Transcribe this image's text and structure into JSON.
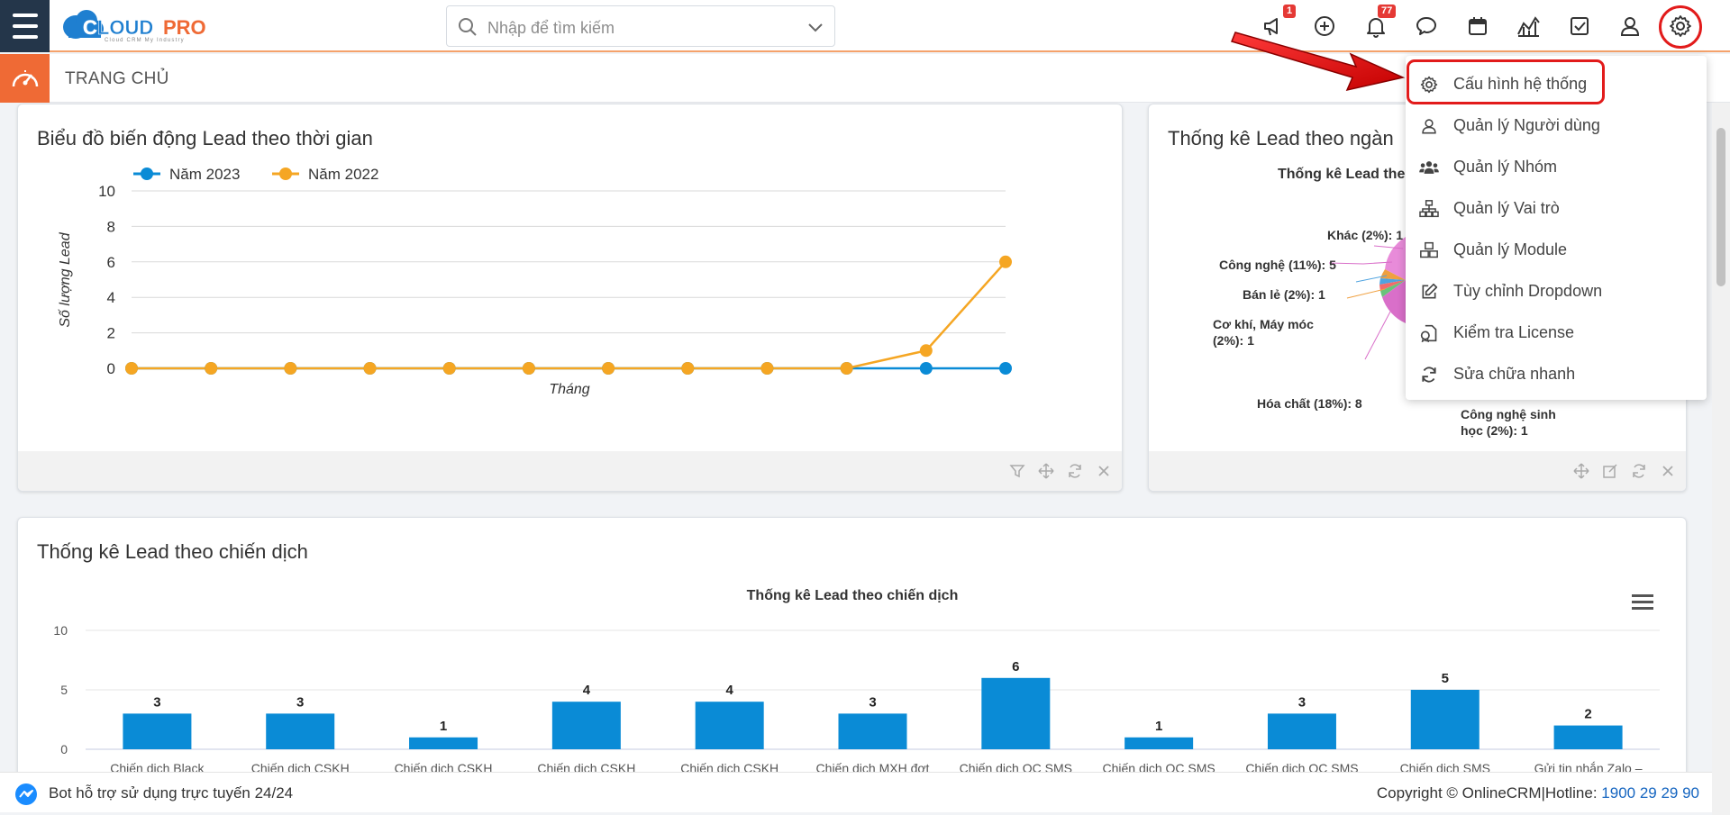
{
  "app": {
    "logo_text": "CLOUDPRO",
    "logo_tagline": "Cloud CRM My Industry"
  },
  "header": {
    "search_placeholder": "Nhập để tìm kiếm",
    "announce_badge": "1",
    "notif_badge": "77",
    "icons": [
      "megaphone-icon",
      "plus-circle-icon",
      "bell-icon",
      "chat-icon",
      "calendar-icon",
      "chart-icon",
      "checkbox-icon",
      "user-icon",
      "gear-icon"
    ]
  },
  "breadcrumb": {
    "title": "TRANG CHỦ"
  },
  "widgets": {
    "line": {
      "title": "Biểu đồ biến động Lead theo thời gian"
    },
    "industry": {
      "title": "Thống kê Lead theo ngàn",
      "chart_title": "Thống kê Lead the",
      "labels": [
        "Khác (2%): 1",
        "Công nghệ (11%): 5",
        "Bán lẻ (2%): 1",
        "Cơ khí, Máy móc",
        "(2%): 1",
        "Hóa chất (18%): 8",
        "Công nghệ sinh",
        "học (2%): 1"
      ]
    },
    "campaign": {
      "title": "Thống kê Lead theo chiến dịch",
      "chart_title": "Thống kê Lead theo chiến dịch"
    }
  },
  "chart_data": [
    {
      "type": "line",
      "title": "",
      "xlabel": "Tháng",
      "ylabel": "Số lượng Lead",
      "ylim": [
        0,
        10
      ],
      "yticks": [
        "10",
        "8",
        "6",
        "4",
        "2",
        "0"
      ],
      "legend": "top-left",
      "series": [
        {
          "name": "Năm 2023",
          "color": "#0a8bd6",
          "values": [
            0,
            0,
            0,
            0,
            0,
            0,
            0,
            0,
            0,
            0,
            0,
            0
          ]
        },
        {
          "name": "Năm 2022",
          "color": "#f5a623",
          "values": [
            0,
            0,
            0,
            0,
            0,
            0,
            0,
            0,
            0,
            0,
            1,
            6
          ]
        }
      ]
    },
    {
      "type": "bar",
      "title": "Thống kê Lead theo chiến dịch",
      "ylim": [
        0,
        10
      ],
      "yticks": [
        "10",
        "5",
        "0"
      ],
      "color": "#0a8bd6",
      "categories": [
        "Chiến dịch Black",
        "Chiến dịch CSKH",
        "Chiến dịch CSKH",
        "Chiến dịch CSKH",
        "Chiến dịch CSKH",
        "Chiến dịch MXH đợt",
        "Chiến dịch QC SMS",
        "Chiến dịch QC SMS",
        "Chiến dịch QC SMS",
        "Chiến dịch SMS",
        "Gửi tin nhắn Zalo –"
      ],
      "values": [
        3,
        3,
        1,
        4,
        4,
        3,
        6,
        1,
        3,
        5,
        2
      ]
    }
  ],
  "dropdown": {
    "items": [
      {
        "label": "Cấu hình hệ thống",
        "icon": "gear-icon"
      },
      {
        "label": "Quản lý Người dùng",
        "icon": "user-icon"
      },
      {
        "label": "Quản lý Nhóm",
        "icon": "group-icon"
      },
      {
        "label": "Quản lý Vai trò",
        "icon": "hierarchy-icon"
      },
      {
        "label": "Quản lý Module",
        "icon": "cubes-icon"
      },
      {
        "label": "Tùy chỉnh Dropdown",
        "icon": "edit-icon"
      },
      {
        "label": "Kiểm tra License",
        "icon": "license-icon"
      },
      {
        "label": "Sửa chữa nhanh",
        "icon": "refresh-icon"
      }
    ]
  },
  "footer": {
    "bot_text": "Bot hỗ trợ sử dụng trực tuyến 24/24",
    "copyright": "Copyright © OnlineCRM|Hotline: ",
    "hotline": "1900 29 29 90"
  },
  "colors": {
    "accent": "#ef6a35",
    "navy": "#24364a",
    "bar": "#0a8bd6",
    "series2": "#f5a623",
    "highlight": "#e21b1b"
  }
}
